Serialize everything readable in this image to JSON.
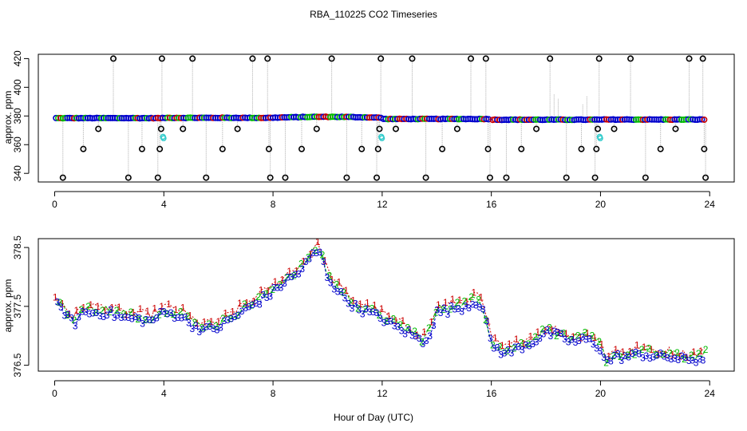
{
  "colors": {
    "background": "#ffffff",
    "axis": "#000000",
    "vline": "#bdbdbd",
    "outlier": "#000000",
    "series1": "#cc0000",
    "series2": "#00bb00",
    "series3": "#0000cc",
    "calibration": "#33cccc"
  },
  "chart_data": [
    {
      "id": "top",
      "type": "scatter",
      "title": "RBA_110225  CO2 Timeseries",
      "xlabel": "",
      "ylabel": "approx. ppm",
      "xlim": [
        -0.6,
        24.9
      ],
      "ylim": [
        334,
        423
      ],
      "xticks": [
        0,
        4,
        8,
        12,
        16,
        20,
        24
      ],
      "yticks": [
        340,
        360,
        380,
        400,
        420
      ],
      "grid": false,
      "baseline_segments": [
        {
          "start": 0.05,
          "end": 3.95,
          "level": 378.5,
          "drift": 0
        },
        {
          "start": 4.05,
          "end": 7.9,
          "level": 378.7,
          "drift": 0
        },
        {
          "start": 8.0,
          "end": 11.95,
          "level": 378.8,
          "drift": 0.6
        },
        {
          "start": 12.05,
          "end": 15.9,
          "level": 377.9,
          "drift": 0
        },
        {
          "start": 16.05,
          "end": 19.95,
          "level": 377.4,
          "drift": 0
        },
        {
          "start": 20.05,
          "end": 23.8,
          "level": 377.5,
          "drift": 0
        }
      ],
      "outliers": [
        {
          "x": 0.3,
          "y": 337
        },
        {
          "x": 1.05,
          "y": 357
        },
        {
          "x": 1.6,
          "y": 371
        },
        {
          "x": 2.15,
          "y": 420
        },
        {
          "x": 2.7,
          "y": 337
        },
        {
          "x": 3.2,
          "y": 357
        },
        {
          "x": 3.78,
          "y": 337
        },
        {
          "x": 3.85,
          "y": 357
        },
        {
          "x": 3.9,
          "y": 371
        },
        {
          "x": 3.93,
          "y": 420
        },
        {
          "x": 4.7,
          "y": 371
        },
        {
          "x": 5.05,
          "y": 420
        },
        {
          "x": 5.55,
          "y": 337
        },
        {
          "x": 6.15,
          "y": 357
        },
        {
          "x": 6.7,
          "y": 371
        },
        {
          "x": 7.25,
          "y": 420
        },
        {
          "x": 7.8,
          "y": 420
        },
        {
          "x": 7.85,
          "y": 357
        },
        {
          "x": 7.9,
          "y": 337
        },
        {
          "x": 8.45,
          "y": 337
        },
        {
          "x": 9.05,
          "y": 357
        },
        {
          "x": 9.6,
          "y": 371
        },
        {
          "x": 10.15,
          "y": 420
        },
        {
          "x": 10.7,
          "y": 337
        },
        {
          "x": 11.25,
          "y": 357
        },
        {
          "x": 11.8,
          "y": 337
        },
        {
          "x": 11.85,
          "y": 357
        },
        {
          "x": 11.9,
          "y": 371
        },
        {
          "x": 11.95,
          "y": 420
        },
        {
          "x": 12.5,
          "y": 371
        },
        {
          "x": 13.1,
          "y": 420
        },
        {
          "x": 13.6,
          "y": 337
        },
        {
          "x": 14.2,
          "y": 357
        },
        {
          "x": 14.75,
          "y": 371
        },
        {
          "x": 15.25,
          "y": 420
        },
        {
          "x": 15.8,
          "y": 420
        },
        {
          "x": 15.88,
          "y": 357
        },
        {
          "x": 15.95,
          "y": 337
        },
        {
          "x": 16.55,
          "y": 337
        },
        {
          "x": 17.1,
          "y": 357
        },
        {
          "x": 17.65,
          "y": 371
        },
        {
          "x": 18.15,
          "y": 420
        },
        {
          "x": 18.75,
          "y": 337
        },
        {
          "x": 19.3,
          "y": 357
        },
        {
          "x": 19.8,
          "y": 337
        },
        {
          "x": 19.85,
          "y": 357
        },
        {
          "x": 19.9,
          "y": 371
        },
        {
          "x": 19.95,
          "y": 420
        },
        {
          "x": 20.5,
          "y": 371
        },
        {
          "x": 21.1,
          "y": 420
        },
        {
          "x": 21.65,
          "y": 337
        },
        {
          "x": 22.2,
          "y": 357
        },
        {
          "x": 22.75,
          "y": 371
        },
        {
          "x": 23.25,
          "y": 420
        },
        {
          "x": 23.75,
          "y": 420
        },
        {
          "x": 23.8,
          "y": 357
        },
        {
          "x": 23.85,
          "y": 337
        }
      ],
      "calibration_points": [
        {
          "x": 3.97,
          "y": 365.5
        },
        {
          "x": 3.99,
          "y": 364.5
        },
        {
          "x": 11.97,
          "y": 365.5
        },
        {
          "x": 11.99,
          "y": 364.5
        },
        {
          "x": 19.97,
          "y": 365.5
        },
        {
          "x": 19.99,
          "y": 364.5
        }
      ]
    },
    {
      "id": "bottom",
      "type": "line",
      "title": "",
      "xlabel": "Hour of Day (UTC)",
      "ylabel": "approx. ppm",
      "xlim": [
        -0.6,
        24.9
      ],
      "ylim": [
        376.4,
        378.65
      ],
      "xticks": [
        0,
        4,
        8,
        12,
        16,
        20,
        24
      ],
      "yticks": [
        376.5,
        377.5,
        378.5
      ],
      "grid": false,
      "series": [
        {
          "name": "1",
          "label": "1",
          "offset": 0.05,
          "color": "#cc0000"
        },
        {
          "name": "2",
          "label": "2",
          "offset": 0.0,
          "color": "#00bb00"
        },
        {
          "name": "3",
          "label": "3",
          "offset": -0.06,
          "color": "#0000cc"
        }
      ],
      "trend": {
        "x": [
          0,
          0.3,
          0.7,
          1.0,
          1.5,
          2.0,
          2.5,
          3.0,
          3.5,
          4.0,
          4.6,
          5.0,
          5.5,
          6.0,
          6.5,
          7.0,
          7.5,
          8.0,
          8.5,
          9.0,
          9.5,
          9.7,
          10.0,
          10.5,
          11.0,
          11.5,
          12.0,
          12.5,
          13.0,
          13.5,
          13.8,
          14.0,
          14.5,
          15.0,
          15.5,
          15.7,
          16.0,
          16.5,
          17.0,
          17.5,
          18.0,
          18.5,
          19.0,
          19.5,
          20.0,
          20.2,
          20.5,
          21.0,
          21.5,
          22.0,
          22.5,
          23.0,
          23.5,
          23.8
        ],
        "values": [
          377.6,
          377.5,
          377.25,
          377.45,
          377.45,
          377.45,
          377.35,
          377.35,
          377.3,
          377.45,
          377.4,
          377.25,
          377.15,
          377.2,
          377.35,
          377.5,
          377.65,
          377.8,
          378.0,
          378.15,
          378.45,
          378.5,
          378.05,
          377.75,
          377.55,
          377.45,
          377.35,
          377.2,
          377.1,
          376.95,
          377.15,
          377.45,
          377.5,
          377.55,
          377.65,
          377.5,
          376.9,
          376.75,
          376.85,
          376.95,
          377.1,
          377.05,
          376.95,
          377.0,
          376.85,
          376.6,
          376.7,
          376.7,
          376.75,
          376.7,
          376.7,
          376.65,
          376.65,
          376.7
        ]
      }
    }
  ]
}
